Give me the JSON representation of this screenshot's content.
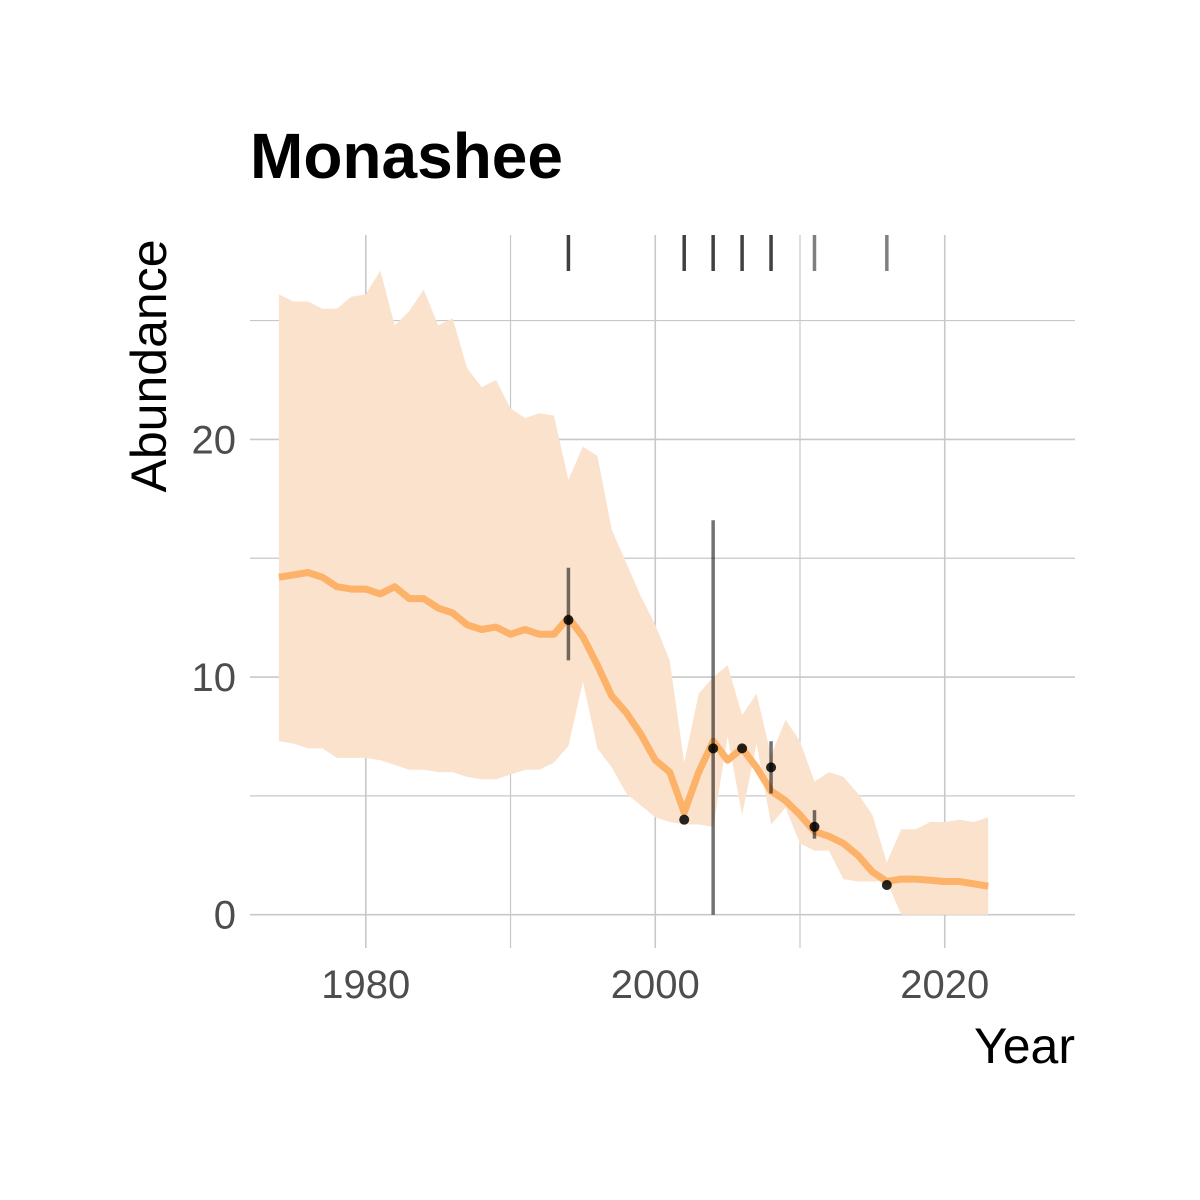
{
  "chart_data": {
    "type": "line",
    "title": "Monashee",
    "xlabel": "Year",
    "ylabel": "Abundance",
    "xlim": [
      1972,
      2029
    ],
    "ylim": [
      -1.4,
      28.6
    ],
    "x_ticks": [
      1980,
      2000,
      2020
    ],
    "x_tick_labels": [
      "1980",
      "2000",
      "2020"
    ],
    "x_minor_ticks": [
      1990,
      2010
    ],
    "y_ticks": [
      0,
      10,
      20
    ],
    "y_tick_labels": [
      "0",
      "10",
      "20"
    ],
    "y_minor_ticks": [
      5,
      15,
      25
    ],
    "grid": true,
    "colors": {
      "line": "#fdb26a",
      "band": "#fbe2cc",
      "points": "#000000",
      "grid": "#c8c8c8"
    },
    "series": [
      {
        "type": "line_with_ribbon",
        "x": [
          1974,
          1975,
          1976,
          1977,
          1978,
          1979,
          1980,
          1981,
          1982,
          1983,
          1984,
          1985,
          1986,
          1987,
          1988,
          1989,
          1990,
          1991,
          1992,
          1993,
          1994,
          1995,
          1996,
          1997,
          1998,
          1999,
          2000,
          2001,
          2002,
          2003,
          2004,
          2005,
          2006,
          2007,
          2008,
          2009,
          2010,
          2011,
          2012,
          2013,
          2014,
          2015,
          2016,
          2017,
          2018,
          2019,
          2020,
          2021,
          2022,
          2023
        ],
        "y": [
          14.2,
          14.3,
          14.4,
          14.2,
          13.8,
          13.7,
          13.7,
          13.5,
          13.8,
          13.3,
          13.3,
          12.9,
          12.7,
          12.2,
          12.0,
          12.1,
          11.8,
          12.0,
          11.8,
          11.8,
          12.5,
          11.7,
          10.5,
          9.2,
          8.5,
          7.6,
          6.5,
          6.0,
          4.3,
          6.0,
          7.3,
          6.5,
          7.0,
          6.2,
          5.2,
          4.8,
          4.2,
          3.5,
          3.3,
          3.0,
          2.5,
          1.8,
          1.4,
          1.5,
          1.5,
          1.45,
          1.4,
          1.4,
          1.3,
          1.2
        ],
        "lower": [
          7.3,
          7.2,
          7.0,
          7.0,
          6.6,
          6.6,
          6.6,
          6.5,
          6.3,
          6.1,
          6.1,
          6.0,
          6.0,
          5.8,
          5.7,
          5.7,
          5.9,
          6.1,
          6.1,
          6.4,
          7.1,
          9.8,
          7.0,
          6.2,
          5.1,
          4.6,
          4.1,
          3.9,
          3.8,
          3.8,
          3.7,
          7.5,
          4.2,
          7.2,
          3.8,
          4.5,
          3.0,
          2.7,
          2.7,
          1.5,
          1.4,
          1.4,
          1.4,
          0.0,
          0.0,
          0.0,
          0.0,
          0.0,
          0.0,
          0.0
        ],
        "upper": [
          26.1,
          25.8,
          25.8,
          25.5,
          25.5,
          26.0,
          26.1,
          27.1,
          24.8,
          25.4,
          26.3,
          24.8,
          25.1,
          23.0,
          22.2,
          22.5,
          21.3,
          20.9,
          21.1,
          21.0,
          18.3,
          19.7,
          19.3,
          16.2,
          14.8,
          13.4,
          12.2,
          10.7,
          6.4,
          9.3,
          10.0,
          10.5,
          8.4,
          9.3,
          6.7,
          8.2,
          7.3,
          5.6,
          6.0,
          5.8,
          5.1,
          4.2,
          2.2,
          3.6,
          3.6,
          3.9,
          3.9,
          4.0,
          3.9,
          4.1
        ]
      },
      {
        "type": "observations",
        "x": [
          1994,
          2002,
          2004,
          2006,
          2008,
          2011,
          2016
        ],
        "y": [
          12.4,
          4.0,
          7.0,
          7.0,
          6.2,
          3.7,
          1.25
        ],
        "lower": [
          10.7,
          null,
          0.0,
          null,
          5.1,
          3.2,
          null
        ],
        "upper": [
          14.6,
          null,
          16.6,
          null,
          7.3,
          4.4,
          null
        ]
      },
      {
        "type": "rug",
        "x": [
          1994,
          2002,
          2004,
          2006,
          2008,
          2011,
          2016
        ],
        "opacity": [
          0.75,
          0.75,
          0.75,
          0.75,
          0.75,
          0.5,
          0.5
        ]
      }
    ]
  }
}
